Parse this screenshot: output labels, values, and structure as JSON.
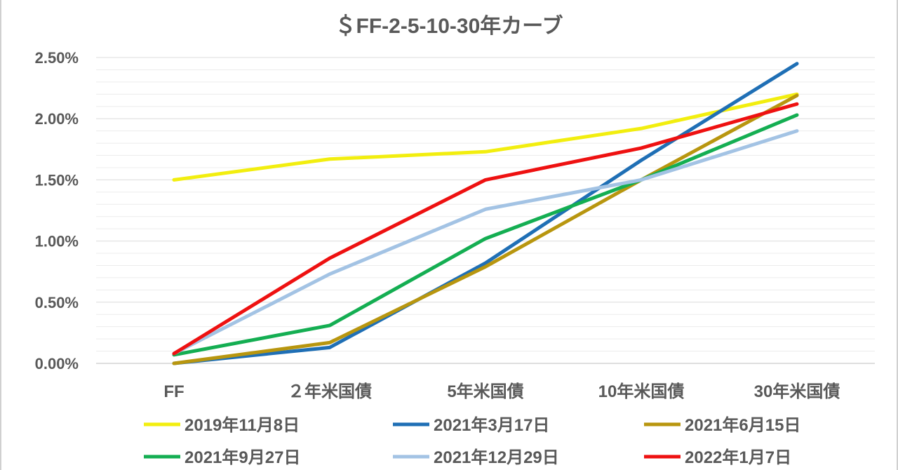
{
  "chart_data": {
    "type": "line",
    "title": "＄FF-2-5-10-30年カーブ",
    "categories": [
      "FF",
      "２年米国債",
      "5年米国債",
      "10年米国債",
      "30年米国債"
    ],
    "y_tick_labels": [
      "0.00%",
      "0.50%",
      "1.00%",
      "1.50%",
      "2.00%",
      "2.50%"
    ],
    "ylim": [
      0,
      2.5
    ],
    "y_unit": "%",
    "grid": true,
    "legend_position": "bottom",
    "series": [
      {
        "name": "2019年11月8日",
        "color": "#f2ee0f",
        "values": [
          1.5,
          1.67,
          1.73,
          1.92,
          2.2
        ]
      },
      {
        "name": "2021年3月17日",
        "color": "#1f6fb5",
        "values": [
          0.0,
          0.13,
          0.82,
          1.66,
          2.45
        ]
      },
      {
        "name": "2021年6月15日",
        "color": "#b8960f",
        "values": [
          0.0,
          0.17,
          0.79,
          1.5,
          2.19
        ]
      },
      {
        "name": "2021年9月27日",
        "color": "#14ae52",
        "values": [
          0.07,
          0.31,
          1.02,
          1.5,
          2.03
        ]
      },
      {
        "name": "2021年12月29日",
        "color": "#a3c3e4",
        "values": [
          0.08,
          0.73,
          1.26,
          1.5,
          1.9
        ]
      },
      {
        "name": "2022年1月7日",
        "color": "#ee1111",
        "values": [
          0.08,
          0.86,
          1.5,
          1.76,
          2.12
        ]
      }
    ]
  }
}
